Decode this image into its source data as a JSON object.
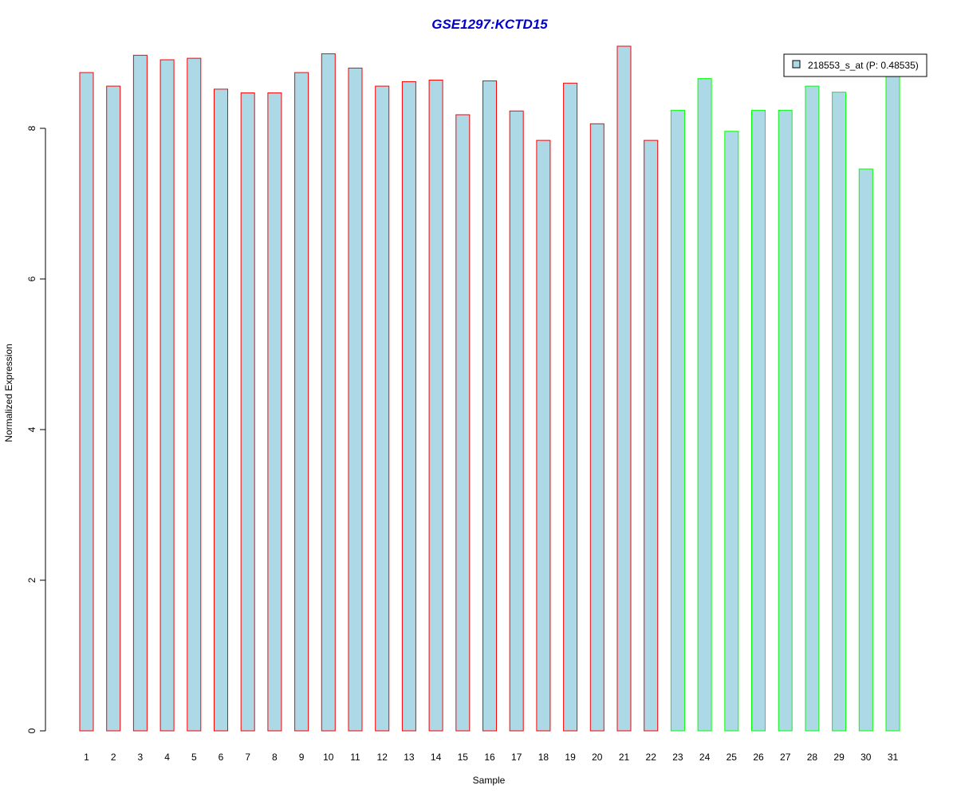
{
  "chart_data": {
    "type": "bar",
    "title": "GSE1297:KCTD15",
    "xlabel": "Sample",
    "ylabel": "Normalized Expression",
    "ylim": [
      0,
      9.2
    ],
    "yticks": [
      0,
      2,
      4,
      6,
      8
    ],
    "categories": [
      "1",
      "2",
      "3",
      "4",
      "5",
      "6",
      "7",
      "8",
      "9",
      "10",
      "11",
      "12",
      "13",
      "14",
      "15",
      "16",
      "17",
      "18",
      "19",
      "20",
      "21",
      "22",
      "23",
      "24",
      "25",
      "26",
      "27",
      "28",
      "29",
      "30",
      "31"
    ],
    "values": [
      8.74,
      8.56,
      8.97,
      8.91,
      8.93,
      8.52,
      8.47,
      8.47,
      8.74,
      8.99,
      8.8,
      8.56,
      8.62,
      8.64,
      8.18,
      8.63,
      8.23,
      7.84,
      8.6,
      8.06,
      9.09,
      7.84,
      8.24,
      8.66,
      7.96,
      8.24,
      8.24,
      8.56,
      8.48,
      7.46,
      8.7
    ],
    "groups": [
      "red",
      "red",
      "red",
      "red",
      "red",
      "red",
      "red",
      "red",
      "red",
      "red",
      "red",
      "red",
      "red",
      "red",
      "red",
      "red",
      "red",
      "red",
      "red",
      "red",
      "red",
      "red",
      "green",
      "green",
      "green",
      "green",
      "green",
      "green",
      "green",
      "green",
      "green"
    ],
    "grid": false,
    "legend": {
      "position": "top-right",
      "entries": [
        {
          "label": "218553_s_at (P: 0.48535)",
          "color": "#add8e6"
        }
      ]
    },
    "colors": {
      "bar_fill": "#add8e6",
      "red": "#ff0000",
      "green": "#00ff00",
      "title": "#0000cc"
    }
  }
}
